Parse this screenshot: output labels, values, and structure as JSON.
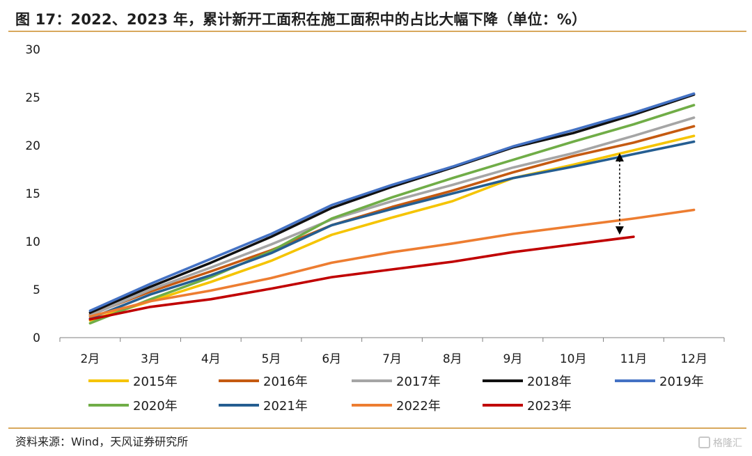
{
  "header": {
    "title": "图 17：2022、2023 年，累计新开工面积在施工面积中的占比大幅下降（单位：%）"
  },
  "footer": {
    "source": "资料来源：Wind，天风证券研究所",
    "watermark": "格隆汇"
  },
  "colors": {
    "accent_rule": "#d8a85c"
  },
  "chart_data": {
    "type": "line",
    "title": "",
    "xlabel": "",
    "ylabel": "",
    "categories": [
      "2月",
      "3月",
      "4月",
      "5月",
      "6月",
      "7月",
      "8月",
      "9月",
      "10月",
      "11月",
      "12月"
    ],
    "ylim": [
      0,
      30
    ],
    "yticks": [
      "0",
      "5",
      "10",
      "15",
      "20",
      "25",
      "30"
    ],
    "grid": false,
    "legend_position": "bottom",
    "annotations": [
      "double-arrow between 2015年 and 2023年 at 11月"
    ],
    "series": [
      {
        "name": "2015年",
        "color": "#f5c400",
        "values": [
          1.8,
          3.8,
          5.8,
          8.0,
          10.7,
          12.5,
          14.2,
          16.6,
          18.0,
          19.5,
          21.0
        ]
      },
      {
        "name": "2016年",
        "color": "#c55a11",
        "values": [
          2.4,
          4.8,
          6.9,
          9.1,
          11.7,
          13.6,
          15.3,
          17.2,
          18.9,
          20.3,
          22.0
        ]
      },
      {
        "name": "2017年",
        "color": "#a5a5a5",
        "values": [
          2.3,
          5.0,
          7.3,
          9.7,
          12.3,
          14.2,
          15.9,
          17.7,
          19.2,
          21.0,
          22.9
        ]
      },
      {
        "name": "2018年",
        "color": "#111111",
        "values": [
          2.6,
          5.3,
          7.8,
          10.5,
          13.5,
          15.7,
          17.7,
          19.8,
          21.3,
          23.2,
          25.3
        ]
      },
      {
        "name": "2019年",
        "color": "#4472c4",
        "values": [
          2.8,
          5.6,
          8.2,
          10.8,
          13.8,
          15.9,
          17.8,
          19.9,
          21.6,
          23.4,
          25.4
        ]
      },
      {
        "name": "2020年",
        "color": "#70ad47",
        "values": [
          1.5,
          4.0,
          6.3,
          9.0,
          12.4,
          14.6,
          16.6,
          18.5,
          20.4,
          22.2,
          24.2
        ]
      },
      {
        "name": "2021年",
        "color": "#255e91",
        "values": [
          2.0,
          4.5,
          6.5,
          8.8,
          11.7,
          13.4,
          15.0,
          16.6,
          17.8,
          19.1,
          20.4
        ]
      },
      {
        "name": "2022年",
        "color": "#ed7d31",
        "values": [
          2.2,
          3.8,
          4.9,
          6.2,
          7.8,
          8.9,
          9.8,
          10.8,
          11.6,
          12.4,
          13.3
        ]
      },
      {
        "name": "2023年",
        "color": "#c00000",
        "values": [
          1.9,
          3.2,
          4.0,
          5.1,
          6.3,
          7.1,
          7.9,
          8.9,
          9.7,
          10.5,
          null
        ]
      }
    ]
  }
}
